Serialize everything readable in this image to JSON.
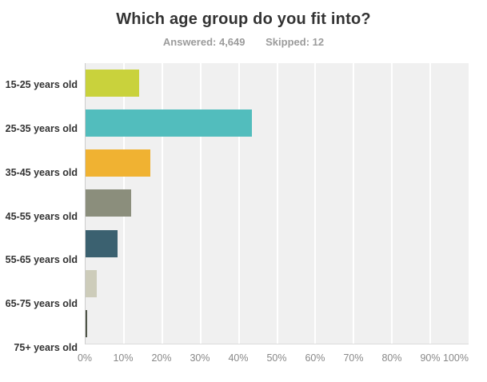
{
  "colors": {
    "title_text": "#333333",
    "subtitle_text": "#9b9b9b",
    "label_text": "#333333",
    "tick_text": "#888888",
    "plot_background": "#f0f0f0",
    "gridline": "#ffffff",
    "axis_line": "#cccccc"
  },
  "chart_data": {
    "type": "bar",
    "orientation": "horizontal",
    "title": "Which age group do you fit into?",
    "answered": "Answered: 4,649",
    "skipped": "Skipped: 12",
    "categories": [
      "15-25 years old",
      "25-35 years old",
      "35-45 years old",
      "45-55 years old",
      "55-65 years old",
      "65-75 years old",
      "75+ years old"
    ],
    "values": [
      14.0,
      43.5,
      17.0,
      11.8,
      8.4,
      2.9,
      0.4
    ],
    "bar_colors": [
      "#c9d23c",
      "#52bdbd",
      "#f0b232",
      "#8b8e7c",
      "#3b6170",
      "#cdccba",
      "#4f5548"
    ],
    "x_ticks": [
      "0%",
      "10%",
      "20%",
      "30%",
      "40%",
      "50%",
      "60%",
      "70%",
      "80%",
      "90%",
      "100%"
    ],
    "xlabel": "",
    "ylabel": "",
    "xlim": [
      0,
      100
    ],
    "grid": true,
    "gridline_step": 10,
    "legend": false
  }
}
